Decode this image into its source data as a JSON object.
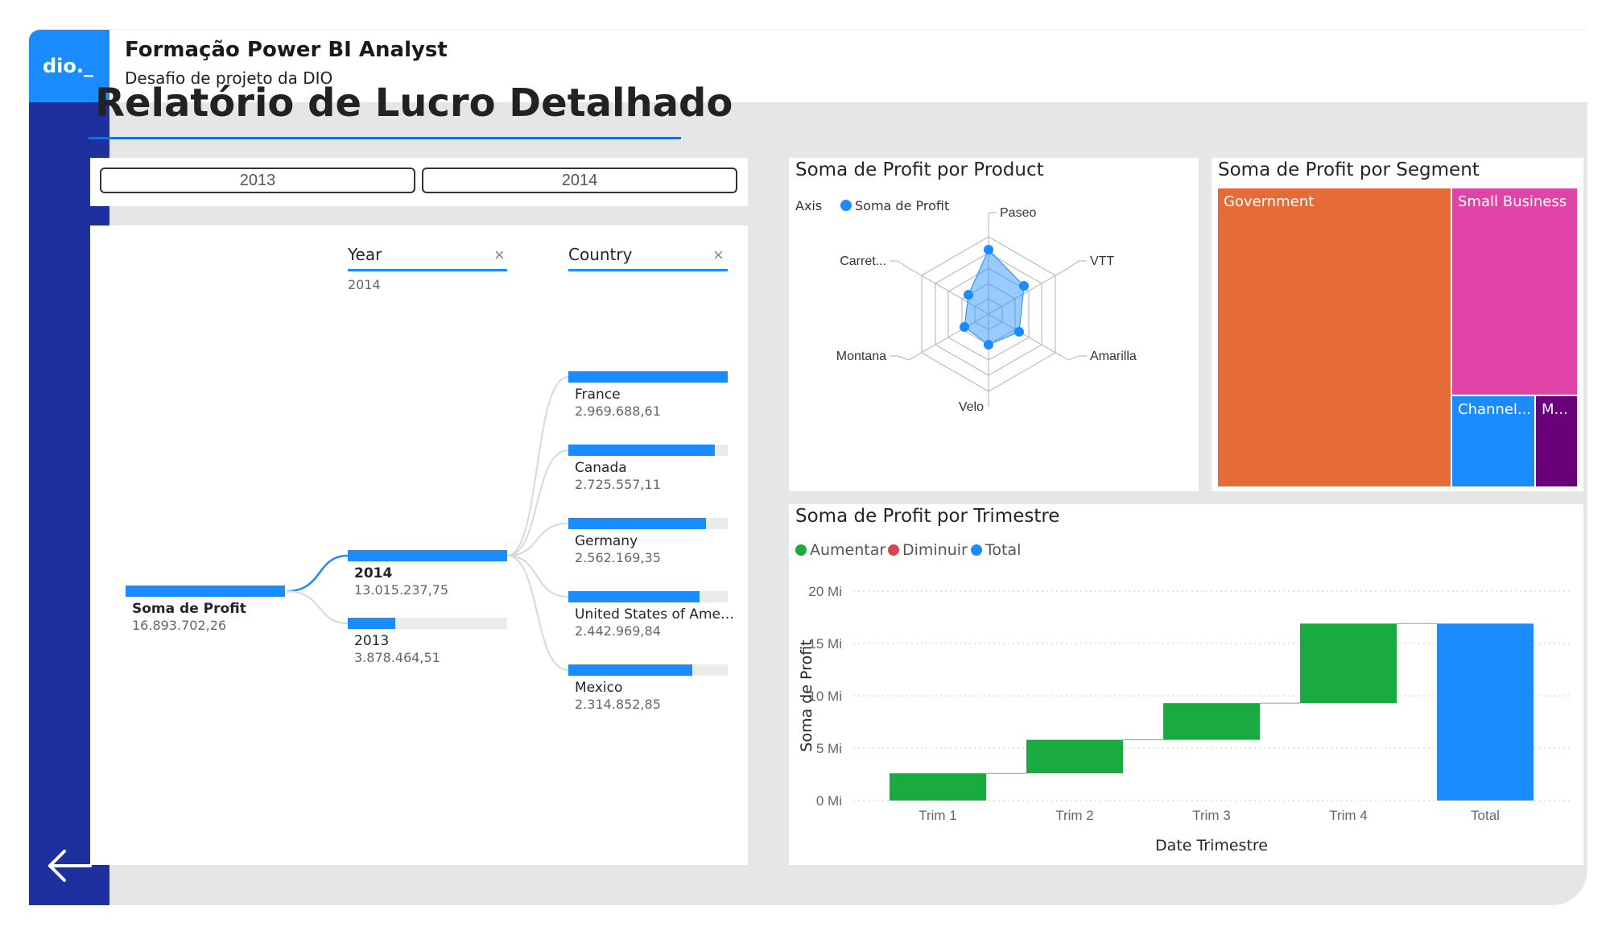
{
  "header": {
    "logo_text": "dio._",
    "title": "Formação Power BI Analyst",
    "subtitle": "Desafio de projeto da DIO"
  },
  "page_title": "Relatório de Lucro Detalhado",
  "slicer": {
    "options": [
      "2013",
      "2014"
    ]
  },
  "decomposition": {
    "year_header": "Year",
    "year_selected": "2014",
    "country_header": "Country",
    "root": {
      "label": "Soma de Profit",
      "value": "16.893.702,26",
      "fraction": 1.0
    },
    "years": [
      {
        "label": "2014",
        "value": "13.015.237,75",
        "fraction": 1.0,
        "selected": true
      },
      {
        "label": "2013",
        "value": "3.878.464,51",
        "fraction": 0.3
      }
    ],
    "countries": [
      {
        "label": "France",
        "value": "2.969.688,61",
        "fraction": 1.0
      },
      {
        "label": "Canada",
        "value": "2.725.557,11",
        "fraction": 0.918
      },
      {
        "label": "Germany",
        "value": "2.562.169,35",
        "fraction": 0.863
      },
      {
        "label": "United States of America",
        "value": "2.442.969,84",
        "fraction": 0.823
      },
      {
        "label": "Mexico",
        "value": "2.314.852,85",
        "fraction": 0.78
      }
    ]
  },
  "radar": {
    "title": "Soma de Profit por Product",
    "legend_axis": "Axis",
    "legend_series": "Soma de Profit",
    "series_color": "#1a8cff",
    "axes": [
      "Paseo",
      "VTT",
      "Amarilla",
      "Velo",
      "Montana",
      "Carret..."
    ],
    "levels": 5
  },
  "treemap": {
    "title": "Soma de Profit por Segment",
    "segments": [
      {
        "label": "Government",
        "color": "#e66c37"
      },
      {
        "label": "Small Business",
        "color": "#e044a7"
      },
      {
        "label": "Channel...",
        "color": "#1a8cff"
      },
      {
        "label": "M...",
        "color": "#6b007b"
      }
    ]
  },
  "chart_data": {
    "type": "bar",
    "subtype": "waterfall",
    "title": "Soma de Profit por Trimestre",
    "xlabel": "Date Trimestre",
    "ylabel": "Soma de Profit",
    "categories": [
      "Trim 1",
      "Trim 2",
      "Trim 3",
      "Trim 4",
      "Total"
    ],
    "increments": [
      2.6,
      3.2,
      3.5,
      7.6
    ],
    "total": 16.9,
    "ylim": [
      0,
      20
    ],
    "yticks": [
      0,
      5,
      10,
      15,
      20
    ],
    "ytick_labels": [
      "0 Mi",
      "5 Mi",
      "10 Mi",
      "15 Mi",
      "20 Mi"
    ],
    "legend": [
      {
        "name": "Aumentar",
        "color": "#1aab40"
      },
      {
        "name": "Diminuir",
        "color": "#d64554"
      },
      {
        "name": "Total",
        "color": "#1a8cff"
      }
    ],
    "legend_position": "top-left",
    "grid": true
  }
}
